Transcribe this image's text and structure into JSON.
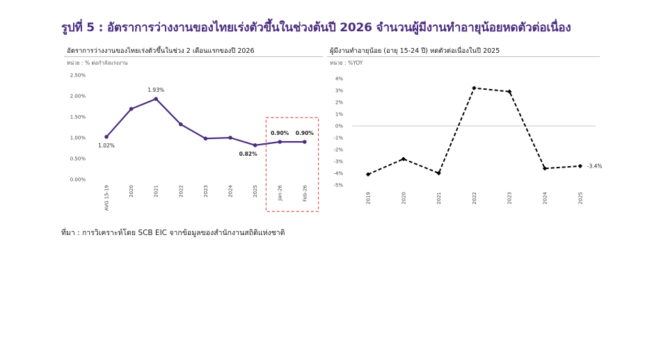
{
  "page": {
    "title": "รูปที่ 5 : อัตราการว่างงานของไทยเร่งตัวขึ้นในช่วงต้นปี 2026 จำนวนผู้มีงานทำอายุน้อยหดตัวต่อเนื่อง",
    "source": "ที่มา : การวิเคราะห์โดย SCB EIC จากข้อมูลของสำนักงานสถิติแห่งชาติ"
  },
  "chart_data": [
    {
      "type": "line",
      "title": "อัตราการว่างงานของไทยเร่งตัวขึ้นในช่วง 2 เดือนแรกของปี 2026",
      "subtitle": "หน่วย : % ต่อกำลังแรงงาน",
      "categories": [
        "AVG 15-19",
        "2020",
        "2021",
        "2022",
        "2023",
        "2024",
        "2025",
        "Jan-26",
        "Feb-26"
      ],
      "series": [
        {
          "values": [
            1.02,
            1.69,
            1.93,
            1.32,
            0.98,
            1.0,
            0.82,
            0.9,
            0.9
          ],
          "color": "#4b2c7f"
        }
      ],
      "ylim": [
        0,
        2.5
      ],
      "yticks": [
        0,
        0.5,
        1.0,
        1.5,
        2.0,
        2.5
      ],
      "ytick_labels": [
        "0.00%",
        "0.50%",
        "1.00%",
        "1.50%",
        "2.00%",
        "2.50%"
      ],
      "data_labels": [
        {
          "index": 0,
          "text": "1.02%",
          "position": "below"
        },
        {
          "index": 2,
          "text": "1.93%",
          "position": "above"
        },
        {
          "index": 6,
          "text": "0.82%",
          "position": "below"
        },
        {
          "index": 7,
          "text": "0.90%",
          "position": "above"
        },
        {
          "index": 8,
          "text": "0.90%",
          "position": "above"
        }
      ],
      "highlight": {
        "from_index": 7,
        "to_index": 8,
        "style": "dashed",
        "color": "#e05555"
      },
      "grid": false
    },
    {
      "type": "line",
      "title": "ผู้มีงานทำอายุน้อย (อายุ 15-24 ปี) หดตัวต่อเนื่องในปี 2025",
      "subtitle": "หน่วย : %YOY",
      "categories": [
        "2019",
        "2020",
        "2021",
        "2022",
        "2023",
        "2024",
        "2025"
      ],
      "series": [
        {
          "values": [
            -4.1,
            -2.8,
            -4.0,
            3.2,
            2.9,
            -3.6,
            -3.4
          ],
          "color": "#000000",
          "style": "dashed"
        }
      ],
      "ylim": [
        -5,
        4
      ],
      "yticks": [
        -5,
        -4,
        -3,
        -2,
        -1,
        0,
        1,
        2,
        3,
        4
      ],
      "ytick_labels": [
        "-5%",
        "-4%",
        "-3%",
        "-2%",
        "-1%",
        "0%",
        "1%",
        "2%",
        "3%",
        "4%"
      ],
      "data_labels": [
        {
          "index": 6,
          "text": "-3.4%",
          "position": "right"
        }
      ],
      "zero_line": true,
      "grid": false
    }
  ]
}
